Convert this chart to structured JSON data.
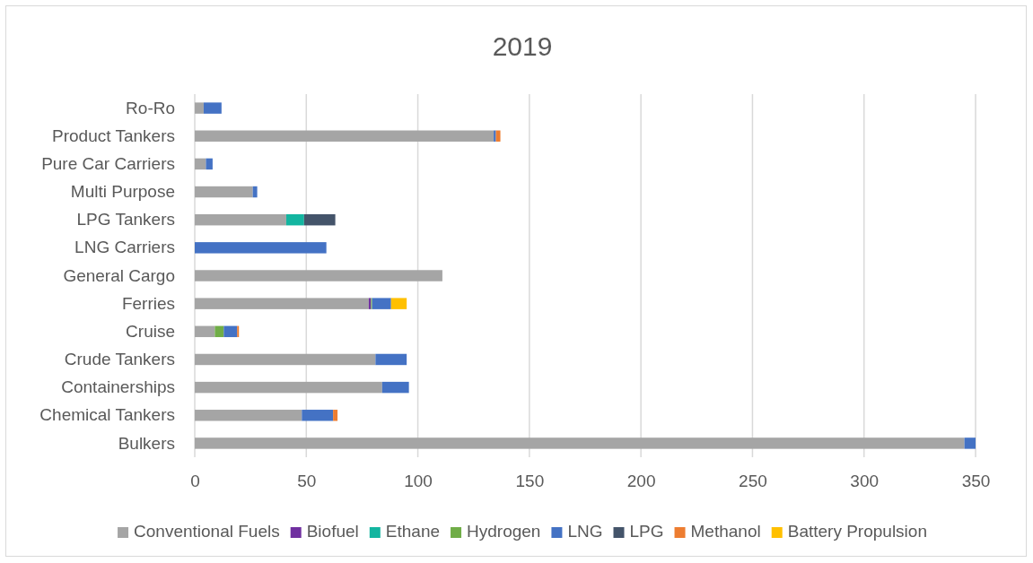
{
  "chart_data": {
    "type": "bar",
    "orientation": "horizontal",
    "stacked": true,
    "title": "2019",
    "categories": [
      "Ro-Ro",
      "Product Tankers",
      "Pure Car Carriers",
      "Multi Purpose",
      "LPG Tankers",
      "LNG Carriers",
      "General Cargo",
      "Ferries",
      "Cruise",
      "Crude Tankers",
      "Containerships",
      "Chemical Tankers",
      "Bulkers"
    ],
    "series": [
      {
        "name": "Conventional Fuels",
        "color": "#a5a5a5",
        "values": [
          4,
          134,
          5,
          26,
          41,
          0,
          111,
          78,
          9,
          81,
          84,
          48,
          345
        ]
      },
      {
        "name": "Biofuel",
        "color": "#7030a0",
        "values": [
          0,
          0,
          0,
          0,
          0,
          0,
          0,
          1,
          0,
          0,
          0,
          0,
          0
        ]
      },
      {
        "name": "Ethane",
        "color": "#13b5a0",
        "values": [
          0,
          0,
          0,
          0,
          8,
          0,
          0,
          0,
          0,
          0,
          0,
          0,
          0
        ]
      },
      {
        "name": "Hydrogen",
        "color": "#70ad47",
        "values": [
          0,
          0,
          0,
          0,
          0,
          0,
          0,
          0.5,
          4,
          0,
          0,
          0,
          0
        ]
      },
      {
        "name": "LNG",
        "color": "#4472c4",
        "values": [
          8,
          1,
          3,
          2,
          0,
          59,
          0,
          8.5,
          6,
          14,
          12,
          14,
          5
        ]
      },
      {
        "name": "LPG",
        "color": "#44546a",
        "values": [
          0,
          0,
          0,
          0,
          14,
          0,
          0,
          0,
          0,
          0,
          0,
          0,
          0
        ]
      },
      {
        "name": "Methanol",
        "color": "#ed7d31",
        "values": [
          0,
          2,
          0,
          0,
          0,
          0,
          0,
          0,
          0.8,
          0,
          0,
          2,
          0
        ]
      },
      {
        "name": "Battery Propulsion",
        "color": "#ffc000",
        "values": [
          0,
          0,
          0,
          0,
          0,
          0,
          0,
          7,
          0,
          0,
          0,
          0,
          0
        ]
      }
    ],
    "xlim": [
      0,
      350
    ],
    "xticks": [
      0,
      50,
      100,
      150,
      200,
      250,
      300,
      350
    ],
    "grid": "x",
    "legend": "bottom"
  }
}
